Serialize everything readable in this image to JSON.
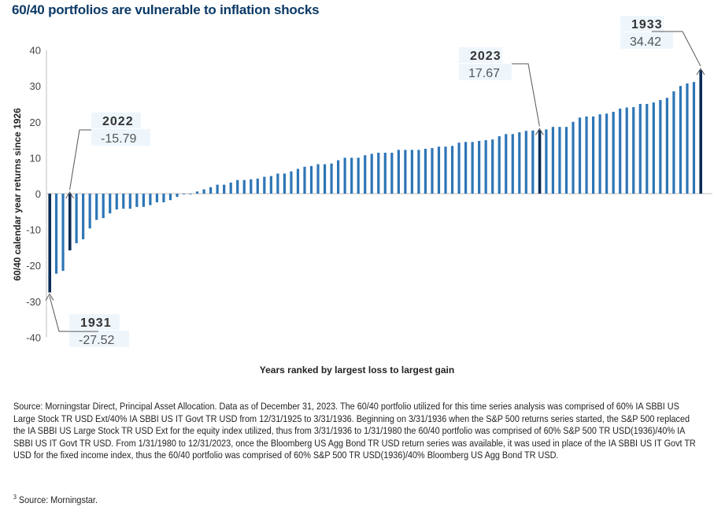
{
  "title": "60/40 portfolios are vulnerable to inflation shocks",
  "chart_data": {
    "type": "bar",
    "title": "60/40 portfolios are vulnerable to inflation shocks",
    "xlabel": "Years ranked by largest loss to largest gain",
    "ylabel": "60/40 calendar year returns since 1926",
    "ylim": [
      -40,
      40
    ],
    "yticks": [
      "40",
      "30",
      "20",
      "10",
      "0",
      "-10",
      "-20",
      "-30",
      "-40"
    ],
    "grid": false,
    "colors": {
      "bar": "#2e75b6",
      "highlight": "#0a2d57",
      "axis": "#bfbfbf",
      "label_bg": "#eef6fc"
    },
    "values": [
      -27.52,
      -22.3,
      -21.5,
      -15.79,
      -13.8,
      -12.7,
      -9.7,
      -7.3,
      -6.8,
      -5.5,
      -4.4,
      -4.2,
      -4.2,
      -3.7,
      -3.7,
      -3.2,
      -2.4,
      -2.4,
      -1.8,
      -0.9,
      -0.2,
      -0.2,
      0.6,
      1.2,
      1.8,
      2.5,
      2.5,
      3.1,
      3.8,
      3.8,
      4.0,
      4.2,
      4.7,
      4.9,
      5.6,
      5.6,
      6.2,
      6.9,
      7.5,
      7.7,
      8.2,
      8.2,
      8.4,
      9.3,
      10.0,
      10.0,
      10.0,
      10.7,
      11.1,
      11.4,
      11.4,
      11.4,
      12.2,
      12.2,
      12.2,
      12.2,
      12.5,
      12.7,
      13.1,
      13.1,
      13.3,
      14.2,
      14.4,
      14.4,
      14.7,
      14.9,
      15.1,
      16.0,
      16.6,
      16.6,
      17.1,
      17.5,
      17.6,
      17.67,
      17.9,
      18.6,
      18.6,
      18.6,
      20.0,
      21.2,
      21.5,
      21.5,
      22.1,
      22.3,
      22.8,
      23.7,
      24.0,
      24.1,
      25.0,
      25.0,
      25.4,
      26.1,
      26.7,
      28.5,
      30.0,
      30.7,
      31.1,
      34.42
    ],
    "annotations": [
      {
        "year": "1931",
        "value": "-27.52",
        "rank": 1
      },
      {
        "year": "2022",
        "value": "-15.79",
        "rank": 4
      },
      {
        "year": "2023",
        "value": "17.67",
        "rank": 74
      },
      {
        "year": "1933",
        "value": "34.42",
        "rank": 98
      }
    ]
  },
  "source": "Source: Morningstar Direct, Principal Asset Allocation. Data as of December 31, 2023. The 60/40 portfolio utilized for this time series analysis was comprised of 60% IA SBBI US Large Stock TR USD Ext/40% IA SBBI US IT Govt TR USD from 12/31/1925 to 3/31/1936. Beginning on 3/31/1936 when the S&P 500 returns series started, the S&P 500 replaced the IA SBBI US Large Stock TR USD Ext for the equity index utilized, thus from 3/31/1936 to 1/31/1980 the 60/40 portfolio was comprised of 60% S&P 500 TR USD(1936)/40% IA SBBI US IT Govt TR USD. From 1/31/1980 to 12/31/2023, once the Bloomberg US Agg Bond TR USD return series was available, it was used in place of the IA SBBI US IT Govt TR USD for the fixed income index, thus the 60/40 portfolio was comprised of 60% S&P 500 TR USD(1936)/40% Bloomberg US Agg Bond TR USD.",
  "footnote": {
    "mark": "3",
    "text": "Source: Morningstar."
  }
}
